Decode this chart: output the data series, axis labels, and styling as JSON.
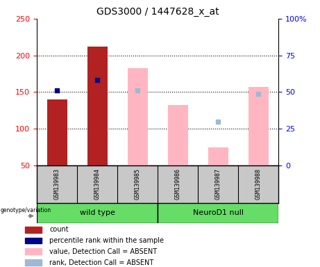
{
  "title": "GDS3000 / 1447628_x_at",
  "samples": [
    "GSM139983",
    "GSM139984",
    "GSM139985",
    "GSM139986",
    "GSM139987",
    "GSM139988"
  ],
  "count_values": [
    140,
    212,
    null,
    null,
    null,
    null
  ],
  "percentile_rank_left": [
    152,
    167,
    null,
    null,
    null,
    null
  ],
  "absent_value_values": [
    null,
    null,
    183,
    132,
    75,
    157
  ],
  "absent_rank_left": [
    null,
    null,
    152,
    null,
    110,
    148
  ],
  "left_ylim": [
    50,
    250
  ],
  "right_ylim": [
    0,
    100
  ],
  "left_yticks": [
    50,
    100,
    150,
    200,
    250
  ],
  "right_yticks": [
    0,
    25,
    50,
    75,
    100
  ],
  "right_yticklabels": [
    "0",
    "25",
    "50",
    "75",
    "100%"
  ],
  "count_color": "#B22222",
  "percentile_color": "#00008B",
  "absent_value_color": "#FFB6C1",
  "absent_rank_color": "#9EB9D4",
  "group_labels": [
    "wild type",
    "NeuroD1 null"
  ],
  "group_starts": [
    0,
    3
  ],
  "group_ends": [
    2,
    5
  ],
  "group_color": "#66DD66",
  "sample_bg": "#C8C8C8",
  "legend_items": [
    [
      "#B22222",
      "count"
    ],
    [
      "#00008B",
      "percentile rank within the sample"
    ],
    [
      "#FFB6C1",
      "value, Detection Call = ABSENT"
    ],
    [
      "#9EB9D4",
      "rank, Detection Call = ABSENT"
    ]
  ]
}
